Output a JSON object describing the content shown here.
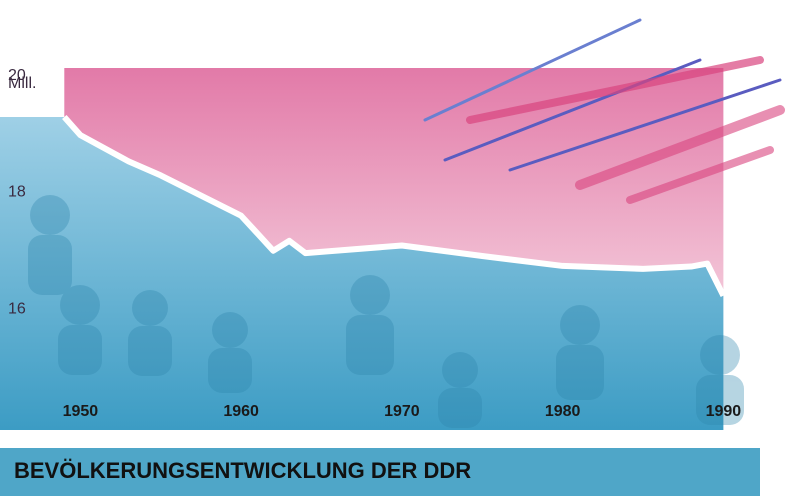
{
  "chart_data": {
    "type": "area",
    "title": "BEVÖLKERUNGSENTWICKLUNG DER DDR",
    "y_unit": "Mill.",
    "x": [
      1949,
      1950,
      1953,
      1955,
      1960,
      1962,
      1963,
      1964,
      1970,
      1975,
      1980,
      1985,
      1988,
      1989,
      1990
    ],
    "values": [
      19.36,
      19.05,
      18.6,
      18.36,
      17.67,
      17.07,
      17.24,
      17.03,
      17.16,
      16.98,
      16.81,
      16.76,
      16.8,
      16.85,
      16.3
    ],
    "color": "#4fa6c8",
    "above_color": "#e58ab2",
    "xlim": [
      1945,
      1992.9
    ],
    "ylim": [
      14,
      20.2
    ],
    "xticks": [
      1950,
      1960,
      1970,
      1980,
      1990
    ],
    "yticks": [
      16,
      18,
      20
    ]
  }
}
